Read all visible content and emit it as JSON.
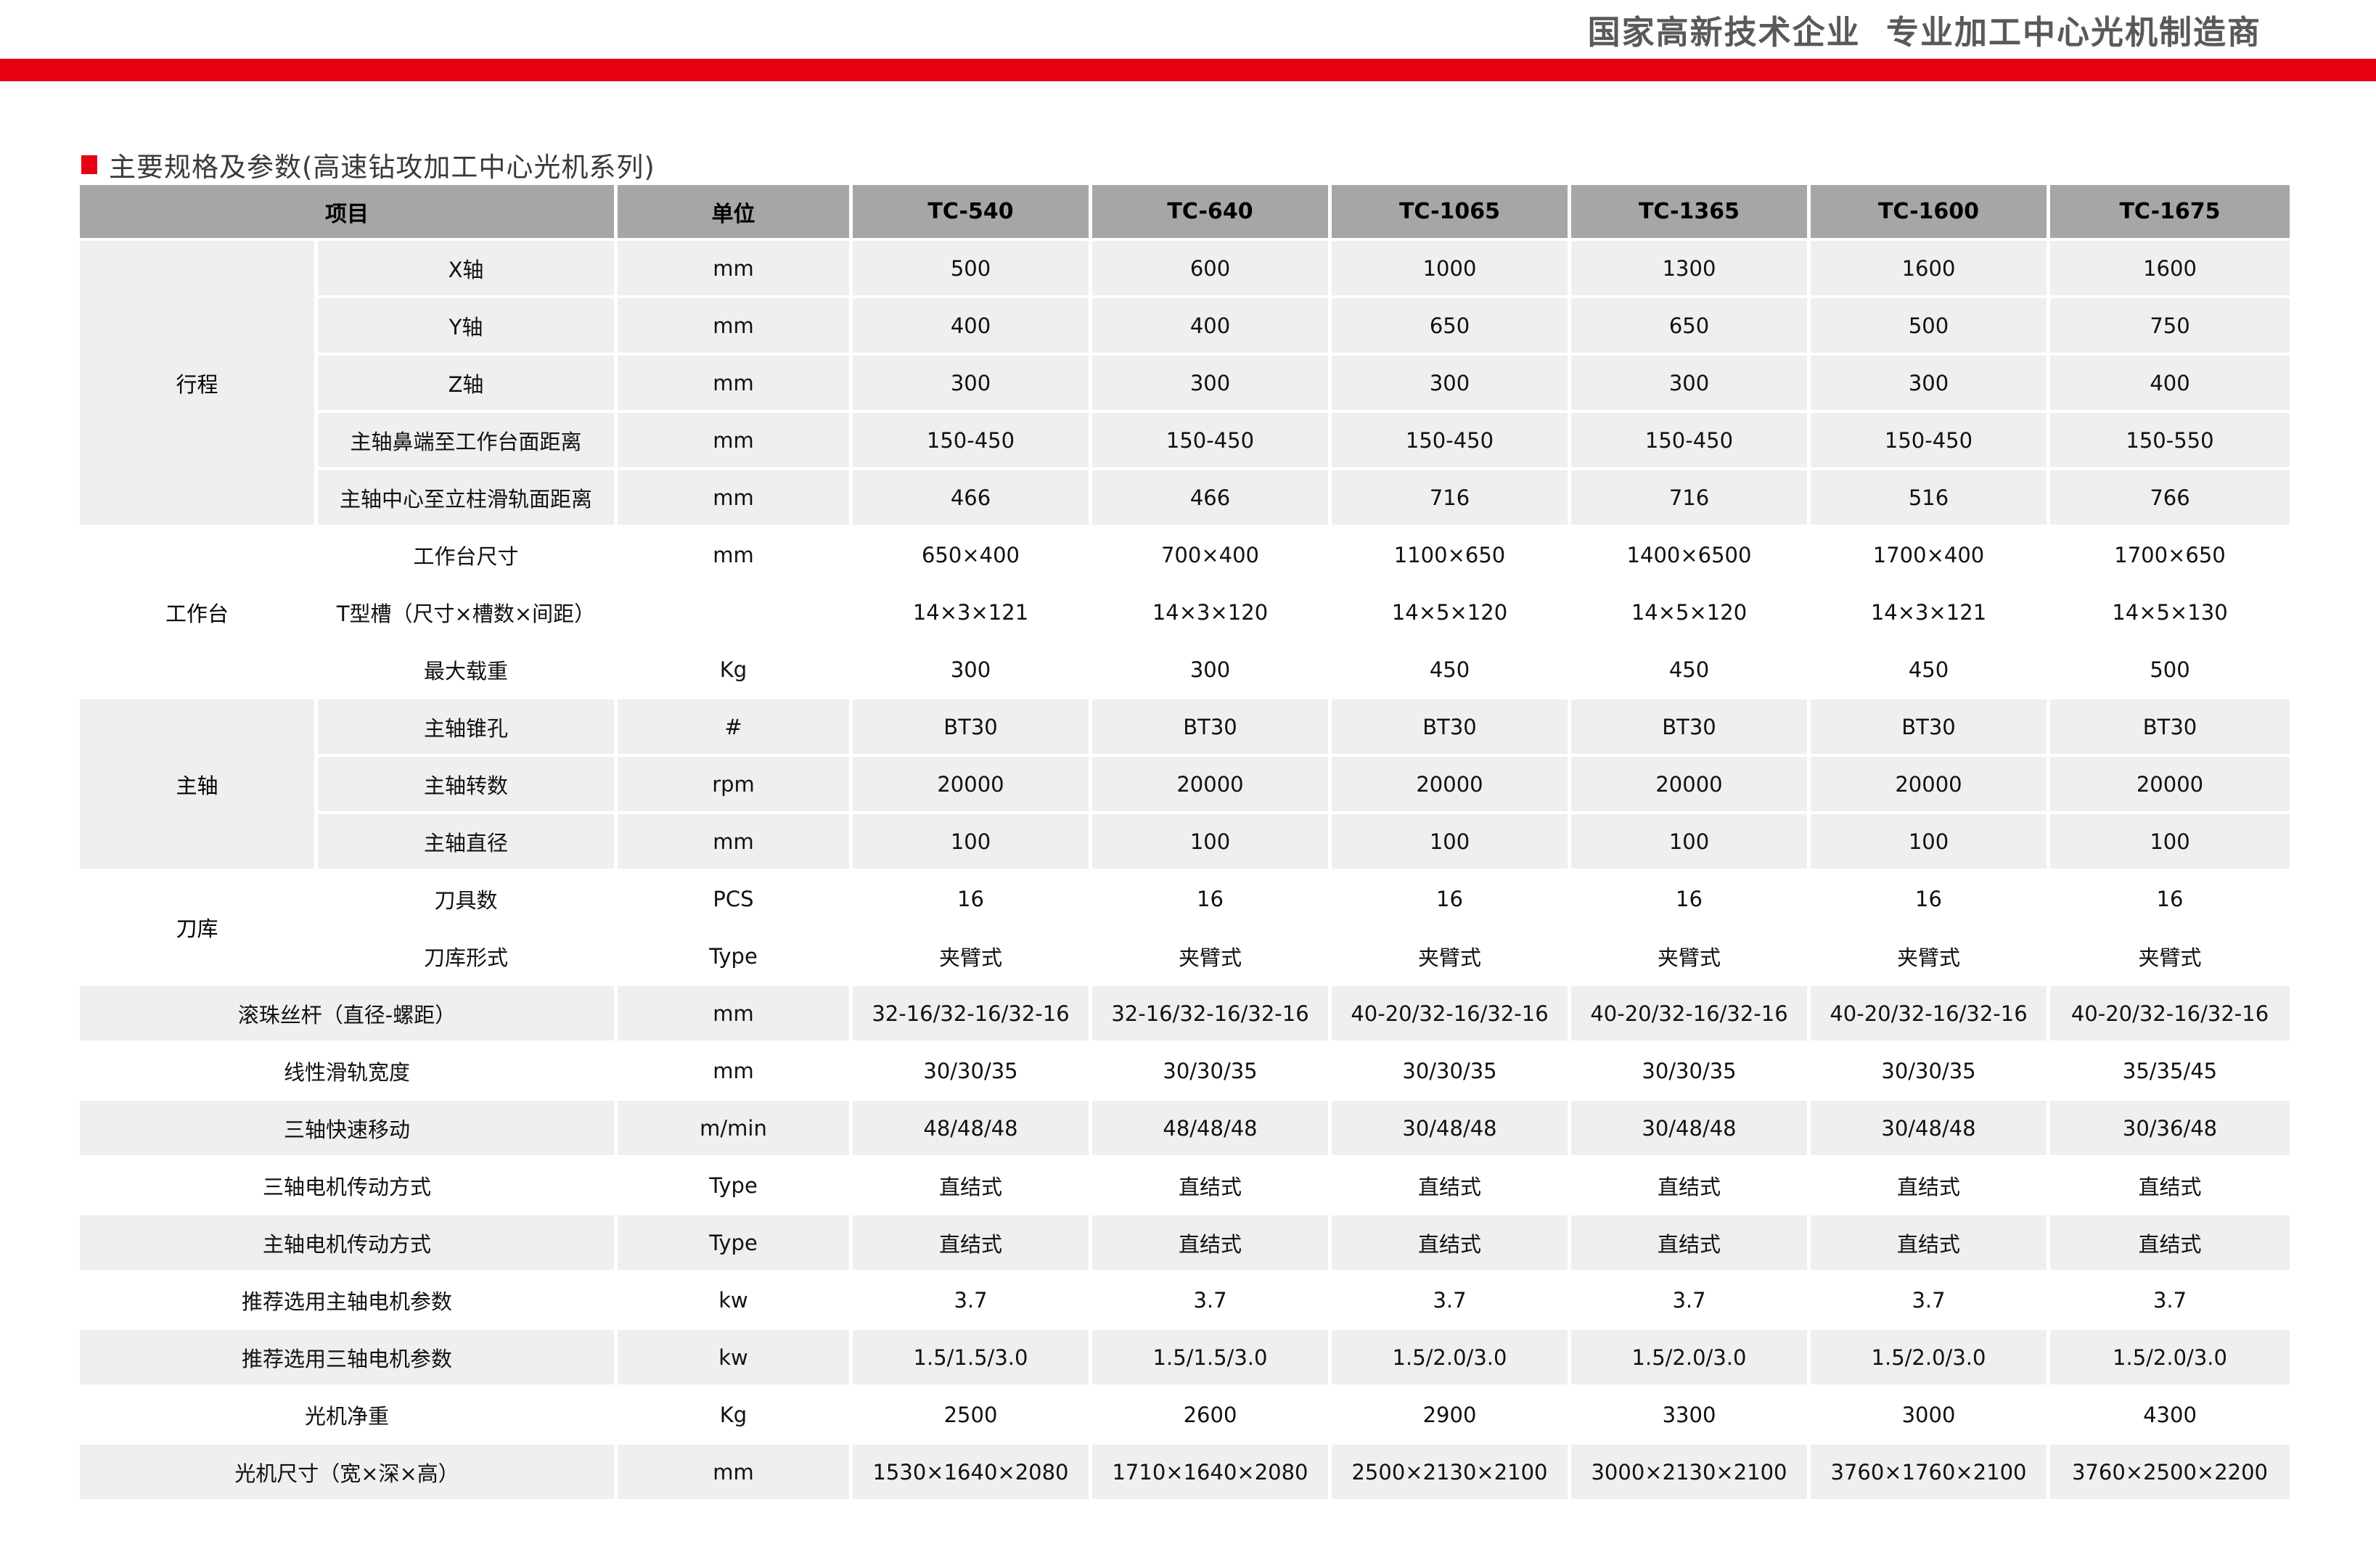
{
  "page": {
    "top_right_text": "国家高新技术企业  专业加工中心光机制造商",
    "section_title": "主要规格及参数(高速钻攻加工中心光机系列)",
    "colors": {
      "accent_red": "#e60012",
      "header_gray": "#a6a6a6",
      "stripe_gray": "#efefef",
      "top_text_gray": "#595959"
    }
  },
  "table": {
    "columns": [
      "项目",
      "单位",
      "TC-540",
      "TC-640",
      "TC-1065",
      "TC-1365",
      "TC-1600",
      "TC-1675"
    ],
    "rows": [
      {
        "group": "行程",
        "rowspan": 5,
        "label": "X轴",
        "unit": "mm",
        "shade": "gray",
        "values": [
          "500",
          "600",
          "1000",
          "1300",
          "1600",
          "1600"
        ]
      },
      {
        "cont": true,
        "label": "Y轴",
        "unit": "mm",
        "shade": "gray",
        "values": [
          "400",
          "400",
          "650",
          "650",
          "500",
          "750"
        ]
      },
      {
        "cont": true,
        "label": "Z轴",
        "unit": "mm",
        "shade": "gray",
        "values": [
          "300",
          "300",
          "300",
          "300",
          "300",
          "400"
        ]
      },
      {
        "cont": true,
        "label": "主轴鼻端至工作台面距离",
        "unit": "mm",
        "shade": "gray",
        "values": [
          "150-450",
          "150-450",
          "150-450",
          "150-450",
          "150-450",
          "150-550"
        ]
      },
      {
        "cont": true,
        "label": "主轴中心至立柱滑轨面距离",
        "unit": "mm",
        "shade": "gray",
        "values": [
          "466",
          "466",
          "716",
          "716",
          "516",
          "766"
        ]
      },
      {
        "group": "工作台",
        "rowspan": 3,
        "label": "工作台尺寸",
        "unit": "mm",
        "shade": "white",
        "values": [
          "650×400",
          "700×400",
          "1100×650",
          "1400×6500",
          "1700×400",
          "1700×650"
        ]
      },
      {
        "cont": true,
        "label": "T型槽（尺寸×槽数×间距）",
        "unit": "",
        "shade": "white",
        "values": [
          "14×3×121",
          "14×3×120",
          "14×5×120",
          "14×5×120",
          "14×3×121",
          "14×5×130"
        ]
      },
      {
        "cont": true,
        "label": "最大载重",
        "unit": "Kg",
        "shade": "white",
        "values": [
          "300",
          "300",
          "450",
          "450",
          "450",
          "500"
        ]
      },
      {
        "group": "主轴",
        "rowspan": 3,
        "label": "主轴锥孔",
        "unit": "#",
        "shade": "gray",
        "values": [
          "BT30",
          "BT30",
          "BT30",
          "BT30",
          "BT30",
          "BT30"
        ]
      },
      {
        "cont": true,
        "label": "主轴转数",
        "unit": "rpm",
        "shade": "gray",
        "values": [
          "20000",
          "20000",
          "20000",
          "20000",
          "20000",
          "20000"
        ]
      },
      {
        "cont": true,
        "label": "主轴直径",
        "unit": "mm",
        "shade": "gray",
        "values": [
          "100",
          "100",
          "100",
          "100",
          "100",
          "100"
        ]
      },
      {
        "group": "刀库",
        "rowspan": 2,
        "label": "刀具数",
        "unit": "PCS",
        "shade": "white",
        "values": [
          "16",
          "16",
          "16",
          "16",
          "16",
          "16"
        ]
      },
      {
        "cont": true,
        "label": "刀库形式",
        "unit": "Type",
        "shade": "white",
        "values": [
          "夹臂式",
          "夹臂式",
          "夹臂式",
          "夹臂式",
          "夹臂式",
          "夹臂式"
        ]
      },
      {
        "label": "滚珠丝杆（直径-螺距）",
        "unit": "mm",
        "shade": "gray",
        "values": [
          "32-16/32-16/32-16",
          "32-16/32-16/32-16",
          "40-20/32-16/32-16",
          "40-20/32-16/32-16",
          "40-20/32-16/32-16",
          "40-20/32-16/32-16"
        ]
      },
      {
        "label": "线性滑轨宽度",
        "unit": "mm",
        "shade": "white",
        "values": [
          "30/30/35",
          "30/30/35",
          "30/30/35",
          "30/30/35",
          "30/30/35",
          "35/35/45"
        ]
      },
      {
        "label": "三轴快速移动",
        "unit": "m/min",
        "shade": "gray",
        "values": [
          "48/48/48",
          "48/48/48",
          "30/48/48",
          "30/48/48",
          "30/48/48",
          "30/36/48"
        ]
      },
      {
        "label": "三轴电机传动方式",
        "unit": "Type",
        "shade": "white",
        "values": [
          "直结式",
          "直结式",
          "直结式",
          "直结式",
          "直结式",
          "直结式"
        ]
      },
      {
        "label": "主轴电机传动方式",
        "unit": "Type",
        "shade": "gray",
        "values": [
          "直结式",
          "直结式",
          "直结式",
          "直结式",
          "直结式",
          "直结式"
        ]
      },
      {
        "label": "推荐选用主轴电机参数",
        "unit": "kw",
        "shade": "white",
        "values": [
          "3.7",
          "3.7",
          "3.7",
          "3.7",
          "3.7",
          "3.7"
        ]
      },
      {
        "label": "推荐选用三轴电机参数",
        "unit": "kw",
        "shade": "gray",
        "values": [
          "1.5/1.5/3.0",
          "1.5/1.5/3.0",
          "1.5/2.0/3.0",
          "1.5/2.0/3.0",
          "1.5/2.0/3.0",
          "1.5/2.0/3.0"
        ]
      },
      {
        "label": "光机净重",
        "unit": "Kg",
        "shade": "white",
        "values": [
          "2500",
          "2600",
          "2900",
          "3300",
          "3000",
          "4300"
        ]
      },
      {
        "label": "光机尺寸（宽×深×高）",
        "unit": "mm",
        "shade": "gray",
        "values": [
          "1530×1640×2080",
          "1710×1640×2080",
          "2500×2130×2100",
          "3000×2130×2100",
          "3760×1760×2100",
          "3760×2500×2200"
        ]
      }
    ]
  }
}
